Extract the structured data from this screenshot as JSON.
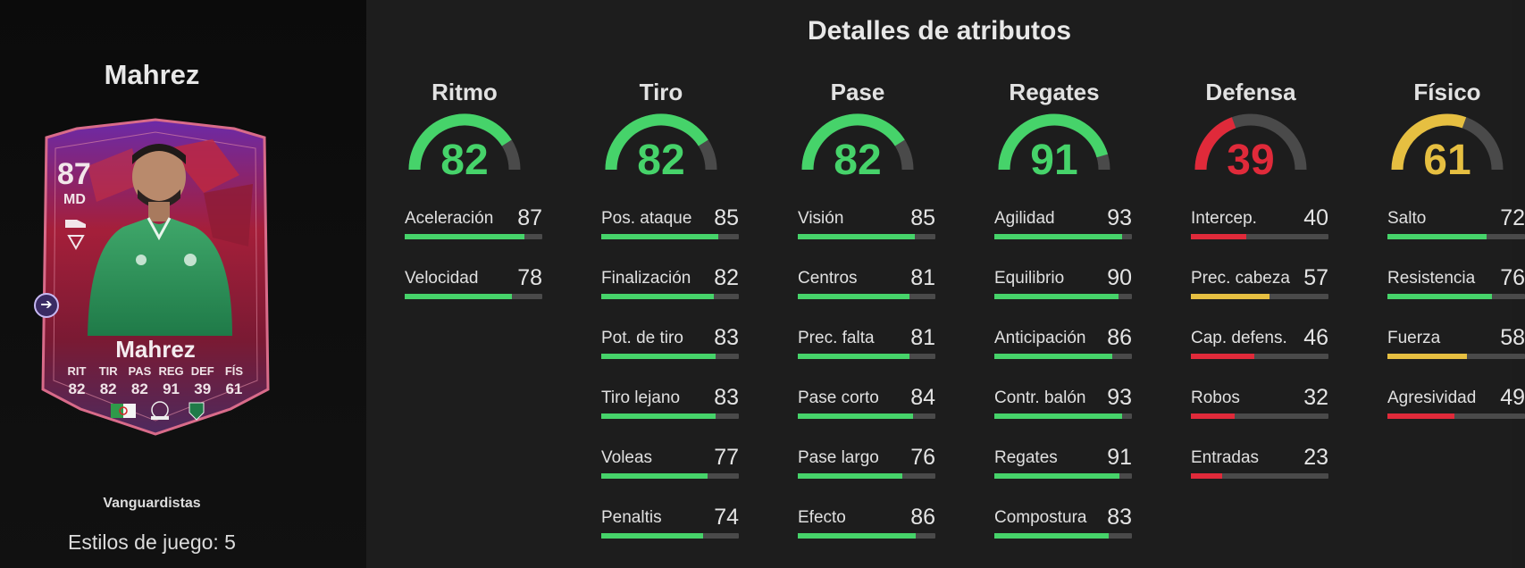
{
  "colors": {
    "good": "#46d36a",
    "mid": "#e6bf41",
    "low": "#e02a3a",
    "track": "#4a4a4a"
  },
  "player": {
    "name_title": "Mahrez",
    "card": {
      "rating": "87",
      "position": "MD",
      "name": "Mahrez",
      "stats": [
        {
          "label": "RIT",
          "value": "82"
        },
        {
          "label": "TIR",
          "value": "82"
        },
        {
          "label": "PAS",
          "value": "82"
        },
        {
          "label": "REG",
          "value": "91"
        },
        {
          "label": "DEF",
          "value": "39"
        },
        {
          "label": "FÍS",
          "value": "61"
        }
      ]
    },
    "rarity": "Vanguardistas",
    "playstyles": "Estilos de juego: 5"
  },
  "page_title": "Detalles de atributos",
  "categories": [
    {
      "name": "Ritmo",
      "value": 82,
      "color": "#46d36a",
      "stats": [
        {
          "name": "Aceleración",
          "value": 87,
          "color": "#46d36a"
        },
        {
          "name": "Velocidad",
          "value": 78,
          "color": "#46d36a"
        }
      ]
    },
    {
      "name": "Tiro",
      "value": 82,
      "color": "#46d36a",
      "stats": [
        {
          "name": "Pos. ataque",
          "value": 85,
          "color": "#46d36a"
        },
        {
          "name": "Finalización",
          "value": 82,
          "color": "#46d36a"
        },
        {
          "name": "Pot. de tiro",
          "value": 83,
          "color": "#46d36a"
        },
        {
          "name": "Tiro lejano",
          "value": 83,
          "color": "#46d36a"
        },
        {
          "name": "Voleas",
          "value": 77,
          "color": "#46d36a"
        },
        {
          "name": "Penaltis",
          "value": 74,
          "color": "#46d36a"
        }
      ]
    },
    {
      "name": "Pase",
      "value": 82,
      "color": "#46d36a",
      "stats": [
        {
          "name": "Visión",
          "value": 85,
          "color": "#46d36a"
        },
        {
          "name": "Centros",
          "value": 81,
          "color": "#46d36a"
        },
        {
          "name": "Prec. falta",
          "value": 81,
          "color": "#46d36a"
        },
        {
          "name": "Pase corto",
          "value": 84,
          "color": "#46d36a"
        },
        {
          "name": "Pase largo",
          "value": 76,
          "color": "#46d36a"
        },
        {
          "name": "Efecto",
          "value": 86,
          "color": "#46d36a"
        }
      ]
    },
    {
      "name": "Regates",
      "value": 91,
      "color": "#46d36a",
      "stats": [
        {
          "name": "Agilidad",
          "value": 93,
          "color": "#46d36a"
        },
        {
          "name": "Equilibrio",
          "value": 90,
          "color": "#46d36a"
        },
        {
          "name": "Anticipación",
          "value": 86,
          "color": "#46d36a"
        },
        {
          "name": "Contr. balón",
          "value": 93,
          "color": "#46d36a"
        },
        {
          "name": "Regates",
          "value": 91,
          "color": "#46d36a"
        },
        {
          "name": "Compostura",
          "value": 83,
          "color": "#46d36a"
        }
      ]
    },
    {
      "name": "Defensa",
      "value": 39,
      "color": "#e02a3a",
      "stats": [
        {
          "name": "Intercep.",
          "value": 40,
          "color": "#e02a3a"
        },
        {
          "name": "Prec. cabeza",
          "value": 57,
          "color": "#e6bf41"
        },
        {
          "name": "Cap. defens.",
          "value": 46,
          "color": "#e02a3a"
        },
        {
          "name": "Robos",
          "value": 32,
          "color": "#e02a3a"
        },
        {
          "name": "Entradas",
          "value": 23,
          "color": "#e02a3a"
        }
      ]
    },
    {
      "name": "Físico",
      "value": 61,
      "color": "#e6bf41",
      "stats": [
        {
          "name": "Salto",
          "value": 72,
          "color": "#46d36a"
        },
        {
          "name": "Resistencia",
          "value": 76,
          "color": "#46d36a"
        },
        {
          "name": "Fuerza",
          "value": 58,
          "color": "#e6bf41"
        },
        {
          "name": "Agresividad",
          "value": 49,
          "color": "#e02a3a"
        }
      ]
    }
  ]
}
